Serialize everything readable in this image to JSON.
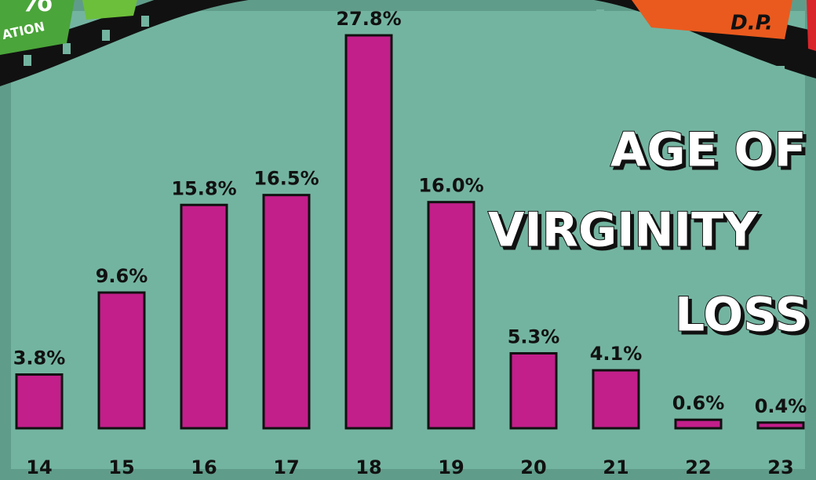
{
  "chart_data": {
    "type": "bar",
    "title_lines": [
      "AGE OF",
      "VIRGINITY",
      "LOSS"
    ],
    "annotations": [
      "%",
      "ATION",
      "D.P."
    ],
    "categories": [
      "14",
      "15",
      "16",
      "17",
      "18",
      "19",
      "20",
      "21",
      "22",
      "23"
    ],
    "values": [
      3.8,
      9.6,
      15.8,
      16.5,
      27.8,
      16.0,
      5.3,
      4.1,
      0.6,
      0.4
    ],
    "value_labels": [
      "3.8%",
      "9.6%",
      "15.8%",
      "16.5%",
      "27.8%",
      "16.0%",
      "5.3%",
      "4.1%",
      "0.6%",
      "0.4%"
    ],
    "color": "#c21f8a"
  }
}
